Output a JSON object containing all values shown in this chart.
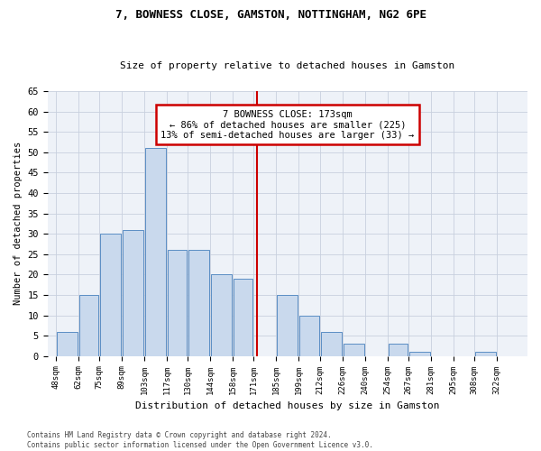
{
  "title1": "7, BOWNESS CLOSE, GAMSTON, NOTTINGHAM, NG2 6PE",
  "title2": "Size of property relative to detached houses in Gamston",
  "xlabel": "Distribution of detached houses by size in Gamston",
  "ylabel": "Number of detached properties",
  "footnote1": "Contains HM Land Registry data © Crown copyright and database right 2024.",
  "footnote2": "Contains public sector information licensed under the Open Government Licence v3.0.",
  "bin_labels": [
    "48sqm",
    "62sqm",
    "75sqm",
    "89sqm",
    "103sqm",
    "117sqm",
    "130sqm",
    "144sqm",
    "158sqm",
    "171sqm",
    "185sqm",
    "199sqm",
    "212sqm",
    "226sqm",
    "240sqm",
    "254sqm",
    "267sqm",
    "281sqm",
    "295sqm",
    "308sqm",
    "322sqm"
  ],
  "bar_values": [
    6,
    15,
    30,
    31,
    51,
    26,
    26,
    20,
    19,
    0,
    15,
    10,
    6,
    3,
    0,
    3,
    1,
    0,
    0,
    1,
    0
  ],
  "bar_edges": [
    48,
    62,
    75,
    89,
    103,
    117,
    130,
    144,
    158,
    171,
    185,
    199,
    212,
    226,
    240,
    254,
    267,
    281,
    295,
    308,
    322,
    336
  ],
  "vline_x": 173,
  "bar_fill_color": "#c9d9ed",
  "bar_edge_color": "#5b8ec4",
  "vline_color": "#cc0000",
  "grid_color": "#c8d0de",
  "bg_color": "#eef2f8",
  "annotation_line1": "7 BOWNESS CLOSE: 173sqm",
  "annotation_line2": "← 86% of detached houses are smaller (225)",
  "annotation_line3": "13% of semi-detached houses are larger (33) →",
  "annotation_box_color": "white",
  "annotation_box_edge": "#cc0000",
  "ylim": [
    0,
    65
  ],
  "yticks": [
    0,
    5,
    10,
    15,
    20,
    25,
    30,
    35,
    40,
    45,
    50,
    55,
    60,
    65
  ]
}
